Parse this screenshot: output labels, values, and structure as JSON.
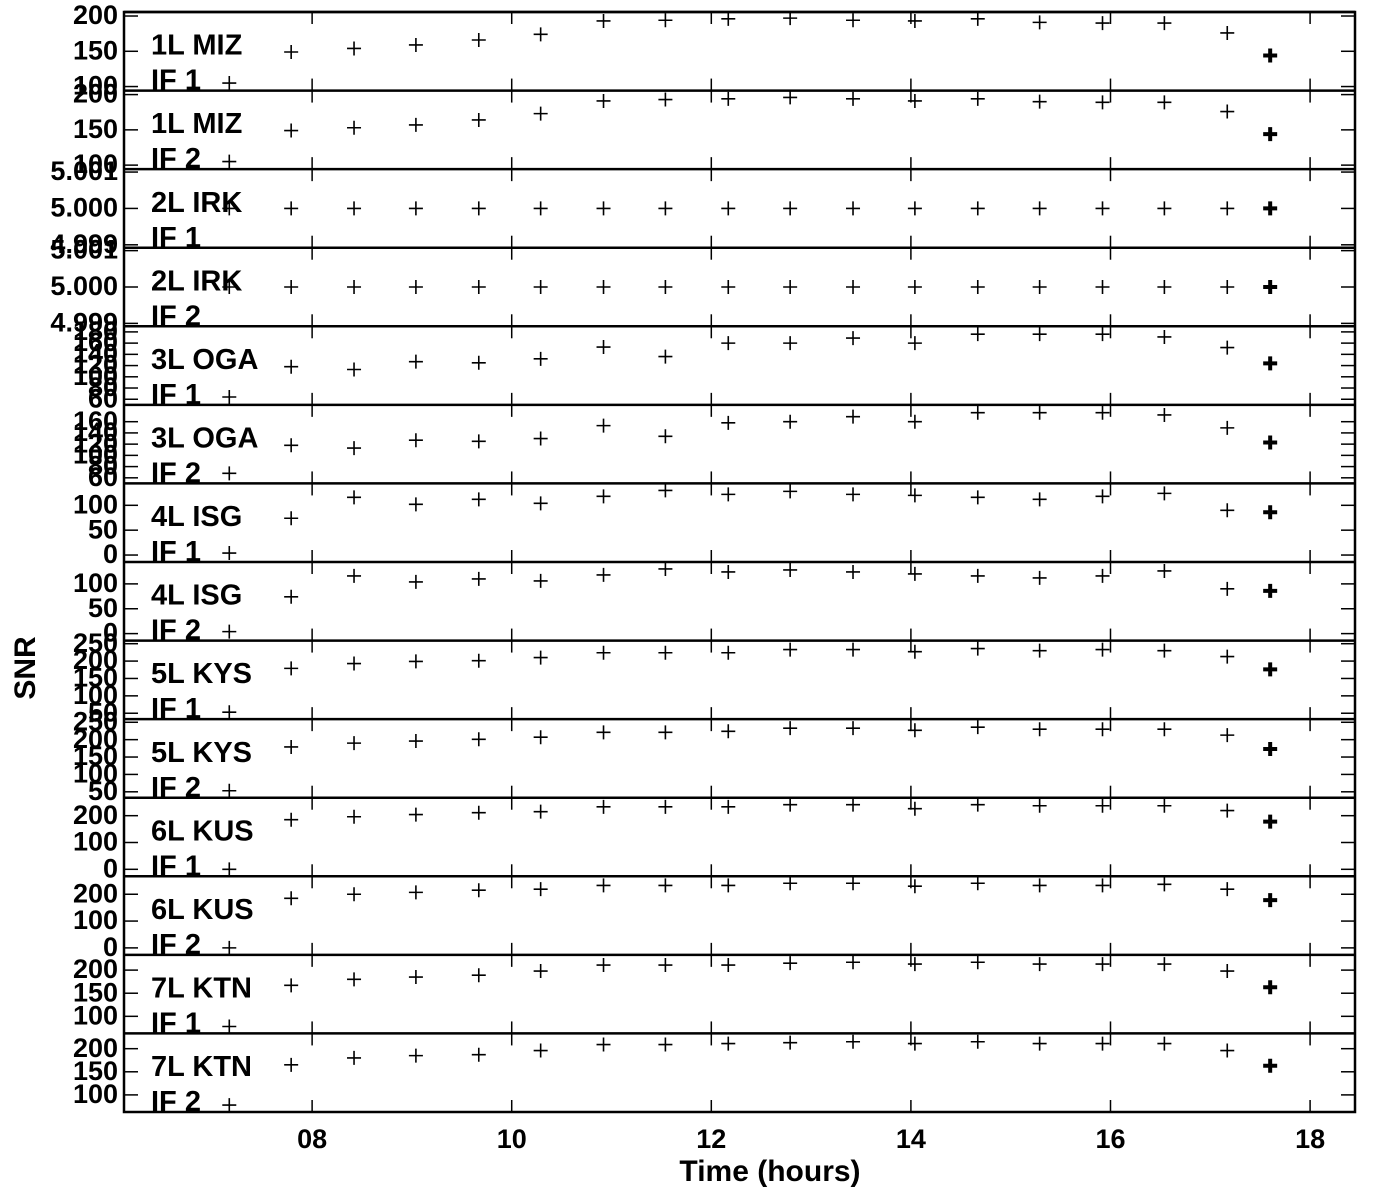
{
  "chart_data": {
    "type": "scatter",
    "xlabel": "Time (hours)",
    "ylabel": "SNR",
    "xlim": [
      6.115,
      18.45
    ],
    "xticks": [
      {
        "value": 8,
        "label": "08"
      },
      10,
      12,
      14,
      16,
      18
    ],
    "color": "#000000",
    "x": [
      7.17,
      7.79,
      8.42,
      9.04,
      9.67,
      10.29,
      10.92,
      11.54,
      12.17,
      12.79,
      13.42,
      14.04,
      14.67,
      15.29,
      15.92,
      16.54,
      17.17,
      17.6
    ],
    "panels": [
      {
        "label": "1L MIZ",
        "sublabel": "IF 1",
        "ylim": [
          94.3,
          205.7
        ],
        "yticks": [
          100,
          150,
          200
        ],
        "values": [
          105,
          149,
          154,
          159,
          166,
          174,
          193,
          194,
          196,
          197,
          194,
          193,
          196,
          191,
          190,
          190,
          176,
          144
        ]
      },
      {
        "label": "1L MIZ",
        "sublabel": "IF 2",
        "ylim": [
          94.3,
          205.7
        ],
        "yticks": [
          100,
          150,
          200
        ],
        "values": [
          105,
          149,
          153,
          157,
          164,
          173,
          191,
          193,
          194,
          196,
          194,
          191,
          194,
          190,
          189,
          189,
          176,
          144
        ]
      },
      {
        "label": "2L IRK",
        "sublabel": "IF 1",
        "ylim": [
          4.99892,
          5.00108
        ],
        "yticks": [
          4.999,
          {
            "value": 5,
            "label": "5.000"
          },
          5.001
        ],
        "values": [
          5,
          5,
          5,
          5,
          5,
          5,
          5,
          5,
          5,
          5,
          5,
          5,
          5,
          5,
          5,
          5,
          5,
          5
        ]
      },
      {
        "label": "2L IRK",
        "sublabel": "IF 2",
        "ylim": [
          4.99892,
          5.00108
        ],
        "yticks": [
          4.999,
          {
            "value": 5,
            "label": "5.000"
          },
          5.001
        ],
        "values": [
          5,
          5,
          5,
          5,
          5,
          5,
          5,
          5,
          5,
          5,
          5,
          5,
          5,
          5,
          5,
          5,
          5,
          5
        ]
      },
      {
        "label": "3L OGA",
        "sublabel": "IF 1",
        "ylim": [
          50,
          190
        ],
        "yticks": [
          60,
          80,
          100,
          120,
          140,
          160,
          180
        ],
        "values": [
          64,
          118,
          113,
          127,
          125,
          132,
          153,
          136,
          160,
          160,
          169,
          160,
          176,
          176,
          176,
          171,
          152,
          124
        ]
      },
      {
        "label": "3L OGA",
        "sublabel": "IF 2",
        "ylim": [
          50,
          190
        ],
        "yticks": [
          60,
          80,
          100,
          120,
          140,
          160
        ],
        "values": [
          68,
          118,
          113,
          127,
          125,
          130,
          153,
          134,
          158,
          160,
          169,
          160,
          176,
          176,
          176,
          172,
          149,
          123
        ]
      },
      {
        "label": "4L ISG",
        "sublabel": "IF 1",
        "ylim": [
          -14,
          144
        ],
        "yticks": [
          0,
          50,
          100
        ],
        "values": [
          4,
          74,
          116,
          102,
          112,
          104,
          118,
          130,
          122,
          128,
          122,
          120,
          116,
          112,
          118,
          124,
          90,
          86
        ]
      },
      {
        "label": "4L ISG",
        "sublabel": "IF 2",
        "ylim": [
          -14,
          144
        ],
        "yticks": [
          0,
          50,
          100
        ],
        "values": [
          4,
          74,
          116,
          104,
          110,
          106,
          118,
          130,
          124,
          128,
          124,
          120,
          116,
          112,
          116,
          126,
          90,
          86
        ]
      },
      {
        "label": "5L KYS",
        "sublabel": "IF 1",
        "ylim": [
          33,
          259
        ],
        "yticks": [
          50,
          100,
          150,
          200,
          250
        ],
        "values": [
          53,
          179,
          193,
          199,
          201,
          210,
          224,
          224,
          224,
          233,
          233,
          227,
          236,
          230,
          233,
          230,
          213,
          176
        ]
      },
      {
        "label": "5L KYS",
        "sublabel": "IF 2",
        "ylim": [
          33,
          259
        ],
        "yticks": [
          50,
          100,
          150,
          200,
          250
        ],
        "values": [
          53,
          179,
          190,
          196,
          201,
          207,
          221,
          221,
          224,
          233,
          233,
          227,
          236,
          230,
          230,
          230,
          213,
          173
        ]
      },
      {
        "label": "6L KUS",
        "sublabel": "IF 1",
        "ylim": [
          -26,
          267
        ],
        "yticks": [
          0,
          100,
          200
        ],
        "values": [
          0,
          185,
          196,
          204,
          211,
          215,
          233,
          233,
          233,
          241,
          241,
          226,
          241,
          237,
          237,
          237,
          219,
          178
        ]
      },
      {
        "label": "6L KUS",
        "sublabel": "IF 2",
        "ylim": [
          -26,
          267
        ],
        "yticks": [
          0,
          100,
          200
        ],
        "values": [
          0,
          185,
          200,
          207,
          215,
          219,
          233,
          233,
          233,
          241,
          241,
          230,
          241,
          233,
          233,
          237,
          219,
          178
        ]
      },
      {
        "label": "7L KTN",
        "sublabel": "IF 1",
        "ylim": [
          63,
          233
        ],
        "yticks": [
          100,
          150,
          200
        ],
        "values": [
          78,
          167,
          180,
          185,
          189,
          198,
          211,
          211,
          211,
          215,
          217,
          213,
          217,
          213,
          213,
          213,
          198,
          163
        ]
      },
      {
        "label": "7L KTN",
        "sublabel": "IF 2",
        "ylim": [
          63,
          233
        ],
        "yticks": [
          100,
          150,
          200
        ],
        "values": [
          78,
          165,
          180,
          185,
          187,
          196,
          209,
          209,
          211,
          213,
          215,
          211,
          215,
          211,
          211,
          211,
          196,
          163
        ]
      }
    ]
  }
}
